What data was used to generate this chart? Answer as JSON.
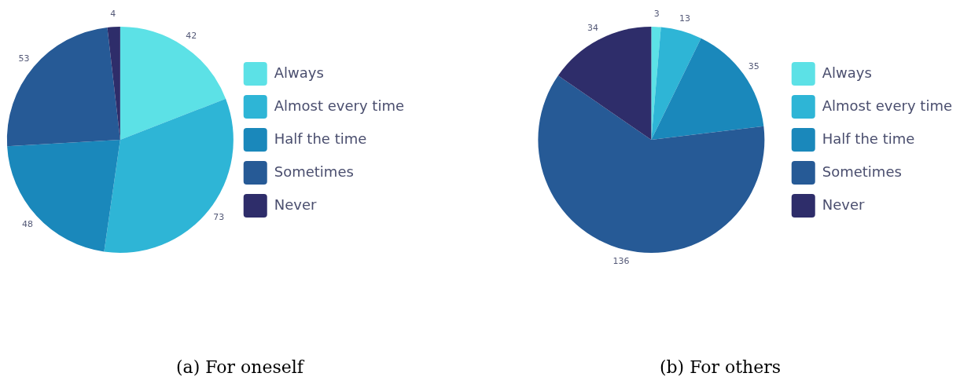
{
  "chart_data": [
    {
      "type": "pie",
      "title": "(a) For oneself",
      "categories": [
        "Always",
        "Almost every time",
        "Half the time",
        "Sometimes",
        "Never"
      ],
      "values": [
        42,
        73,
        48,
        53,
        4
      ],
      "colors": [
        "#5ce1e6",
        "#2eb5d6",
        "#1a88bb",
        "#265a96",
        "#2e2d6a"
      ],
      "data_labels": true,
      "legend": "right"
    },
    {
      "type": "pie",
      "title": "(b) For others",
      "categories": [
        "Always",
        "Almost every time",
        "Half the time",
        "Sometimes",
        "Never"
      ],
      "values": [
        3,
        13,
        35,
        136,
        34
      ],
      "colors": [
        "#5ce1e6",
        "#2eb5d6",
        "#1a88bb",
        "#265a96",
        "#2e2d6a"
      ],
      "data_labels": true,
      "legend": "right"
    }
  ]
}
